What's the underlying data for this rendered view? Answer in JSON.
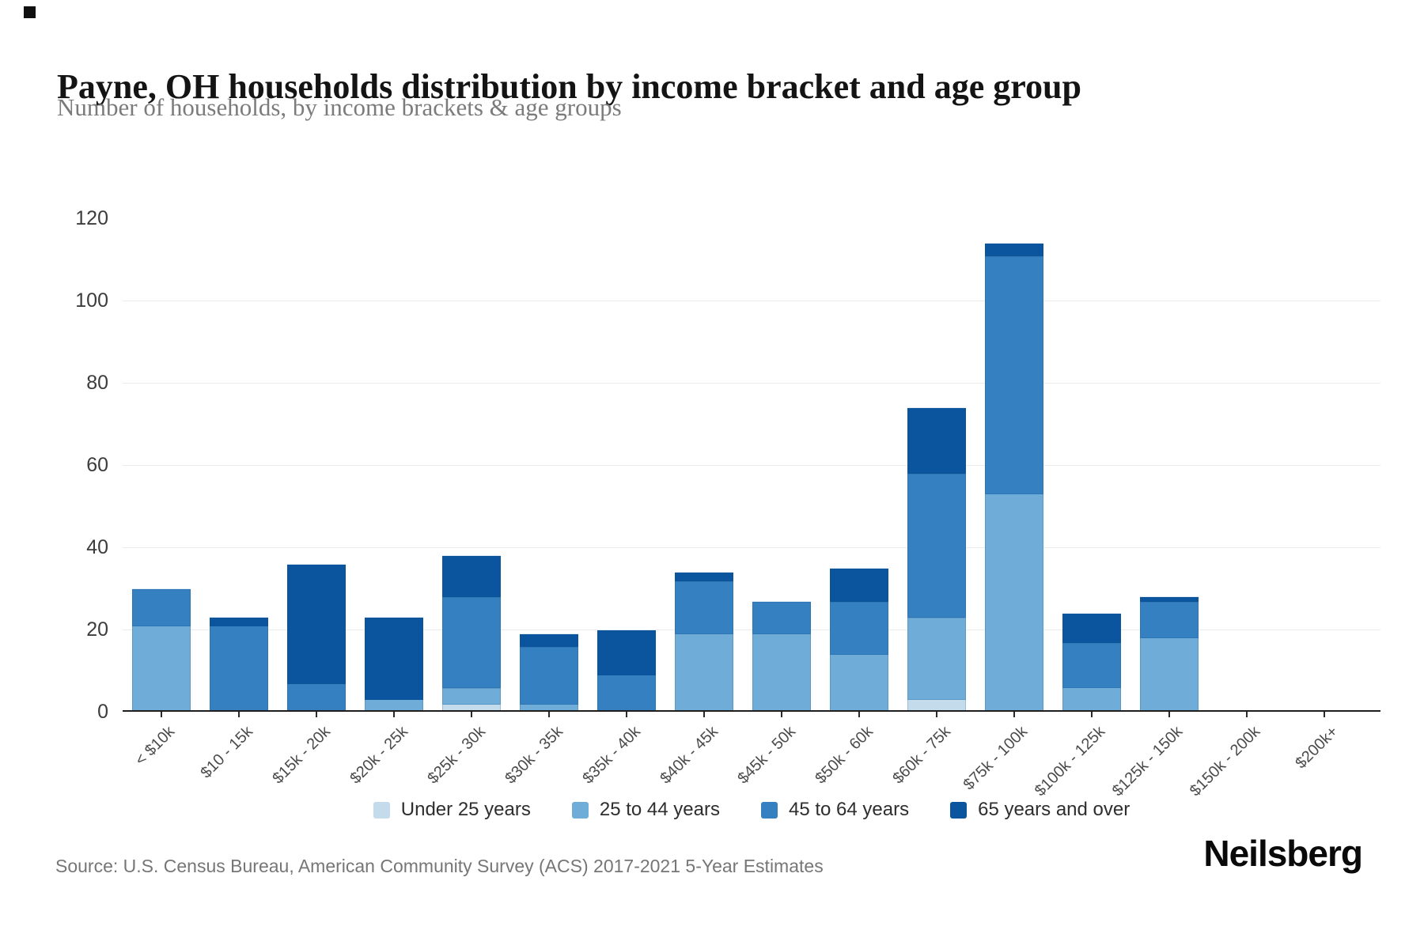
{
  "page": {
    "title": "Payne, OH households distribution by income bracket and age group",
    "subtitle": "Number of households, by income brackets & age groups",
    "source": "Source: U.S. Census Bureau, American Community Survey (ACS) 2017-2021 5-Year Estimates",
    "brand": "Neilsberg"
  },
  "chart_data": {
    "type": "bar",
    "stacked": true,
    "title": "Payne, OH households distribution by income bracket and age group",
    "subtitle": "Number of households, by income brackets & age groups",
    "xlabel": "",
    "ylabel": "",
    "ylim": [
      0,
      120
    ],
    "yticks": [
      0,
      20,
      40,
      60,
      80,
      100,
      120
    ],
    "grid": "horizontal",
    "legend_position": "bottom",
    "categories": [
      "< $10k",
      "$10 - 15k",
      "$15k - 20k",
      "$20k - 25k",
      "$25k - 30k",
      "$30k - 35k",
      "$35k - 40k",
      "$40k - 45k",
      "$45k - 50k",
      "$50k - 60k",
      "$60k - 75k",
      "$75k - 100k",
      "$100k - 125k",
      "$125k - 150k",
      "$150k - 200k",
      "$200k+"
    ],
    "series": [
      {
        "name": "Under 25 years",
        "color": "#c4dbeb",
        "values": [
          0,
          0,
          0,
          0,
          2,
          0,
          0,
          0,
          0,
          0,
          3,
          0,
          0,
          0,
          0,
          0
        ]
      },
      {
        "name": "25 to 44 years",
        "color": "#6fadd8",
        "values": [
          21,
          0,
          0,
          3,
          4,
          2,
          0,
          19,
          19,
          14,
          20,
          53,
          6,
          18,
          0,
          0
        ]
      },
      {
        "name": "45 to 64 years",
        "color": "#3580c1",
        "values": [
          9,
          21,
          7,
          0,
          22,
          14,
          9,
          13,
          8,
          13,
          35,
          58,
          11,
          9,
          0,
          0
        ]
      },
      {
        "name": "65 years and over",
        "color": "#0b559f",
        "values": [
          0,
          2,
          29,
          20,
          10,
          3,
          11,
          2,
          0,
          8,
          16,
          3,
          7,
          1,
          0,
          0
        ]
      }
    ],
    "totals": [
      30,
      23,
      36,
      23,
      38,
      19,
      20,
      34,
      27,
      35,
      74,
      114,
      24,
      28,
      0,
      0
    ]
  }
}
